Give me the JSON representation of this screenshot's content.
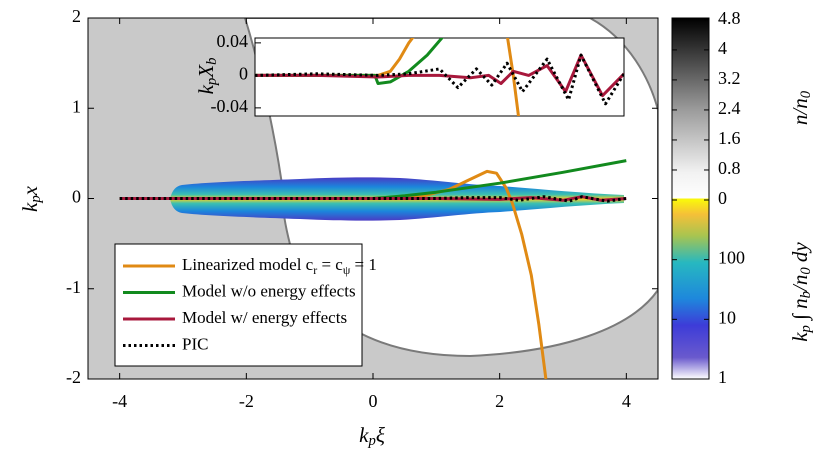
{
  "chart_data": [
    {
      "type": "line",
      "xlabel": "k_pξ",
      "ylabel": "k_px",
      "xlim": [
        -4.5,
        4.5
      ],
      "ylim": [
        -2,
        2
      ],
      "xticks": [
        -4,
        -2,
        0,
        2,
        4
      ],
      "yticks": [
        -2,
        -1,
        0,
        1,
        2
      ],
      "legend": "lower left",
      "series": [
        {
          "name": "Linearized model c_r = c_ψ = 1",
          "color": "#e08a14",
          "linestyle": "solid",
          "x": [
            -4,
            -2,
            0,
            0.4,
            0.8,
            1.2,
            1.5,
            1.8,
            1.95,
            2.1,
            2.2,
            2.35,
            2.5,
            2.62,
            2.73
          ],
          "values": [
            0,
            0,
            0,
            0.005,
            0.03,
            0.1,
            0.2,
            0.3,
            0.28,
            0.12,
            -0.05,
            -0.4,
            -0.85,
            -1.4,
            -2.0
          ]
        },
        {
          "name": "Model w/o energy effects",
          "color": "#128a1e",
          "linestyle": "solid",
          "x": [
            -4,
            -2,
            0,
            0.5,
            1,
            2,
            3,
            4
          ],
          "values": [
            0,
            0,
            0,
            0.03,
            0.07,
            0.17,
            0.29,
            0.42
          ]
        },
        {
          "name": "Model w/ energy effects",
          "color": "#a8183c",
          "linestyle": "solid",
          "x": [
            -4,
            -2,
            0,
            1,
            2,
            2.5,
            3,
            3.3,
            3.6,
            4
          ],
          "values": [
            0,
            0,
            0,
            0,
            -0.01,
            0.01,
            -0.02,
            0.02,
            -0.02,
            0
          ]
        },
        {
          "name": "PIC",
          "color": "#000000",
          "linestyle": "dotted",
          "x": [
            -4,
            -2,
            0,
            1,
            1.5,
            2,
            2.3,
            2.7,
            3.1,
            3.3,
            3.7,
            4
          ],
          "values": [
            0,
            0,
            0,
            0,
            0.01,
            0.01,
            -0.02,
            0.02,
            -0.03,
            0.02,
            -0.03,
            0
          ]
        }
      ]
    },
    {
      "type": "line",
      "ylabel": "k_pX_b",
      "xlim": [
        -2,
        4
      ],
      "ylim": [
        -0.05,
        0.046
      ],
      "yticks": [
        -0.04,
        0,
        0.04
      ],
      "series": [
        {
          "color": "#e08a14",
          "linestyle": "solid",
          "x": [
            -2,
            -1,
            0,
            0.2,
            0.35,
            0.5,
            0.6,
            1.0,
            2.1,
            2.2,
            2.3
          ],
          "values": [
            0,
            0,
            0,
            0.005,
            0.02,
            0.04,
            0.05,
            null,
            0.05,
            0,
            -0.06
          ]
        },
        {
          "color": "#128a1e",
          "linestyle": "solid",
          "x": [
            -2,
            -0.05,
            0,
            0.2,
            0.5,
            0.8,
            1.05
          ],
          "values": [
            0,
            0,
            -0.01,
            -0.008,
            0.005,
            0.025,
            0.047
          ]
        },
        {
          "color": "#a8183c",
          "linestyle": "solid",
          "x": [
            -2,
            -1,
            0,
            0.5,
            1,
            1.5,
            1.8,
            2.0,
            2.2,
            2.45,
            2.75,
            3.05,
            3.3,
            3.65,
            4.0
          ],
          "values": [
            0,
            0,
            -0.002,
            0,
            0,
            -0.003,
            0,
            -0.01,
            0.005,
            0,
            0.012,
            -0.02,
            0.025,
            -0.025,
            0.002
          ]
        },
        {
          "color": "#000000",
          "linestyle": "dotted",
          "x": [
            -2,
            -1,
            0,
            0.5,
            1.0,
            1.3,
            1.6,
            1.85,
            2.1,
            2.35,
            2.75,
            3.1,
            3.3,
            3.7,
            4.0
          ],
          "values": [
            0,
            0.002,
            0,
            0.002,
            0.008,
            -0.015,
            0.008,
            -0.012,
            0.015,
            -0.02,
            0.02,
            -0.03,
            0.025,
            -0.035,
            0.002
          ]
        }
      ]
    },
    {
      "type": "colorbar",
      "label": "n/n_0",
      "lim": [
        0,
        4.85
      ],
      "ticks": [
        0,
        0.8,
        1.6,
        2.4,
        3.2,
        4,
        4.8
      ],
      "colormap": "gray"
    },
    {
      "type": "colorbar",
      "label": "k_p ∫ n_b/n_0 dy",
      "lim": [
        1,
        1000
      ],
      "ticks": [
        1,
        10,
        100
      ],
      "log": true,
      "colormap": "parula"
    }
  ]
}
